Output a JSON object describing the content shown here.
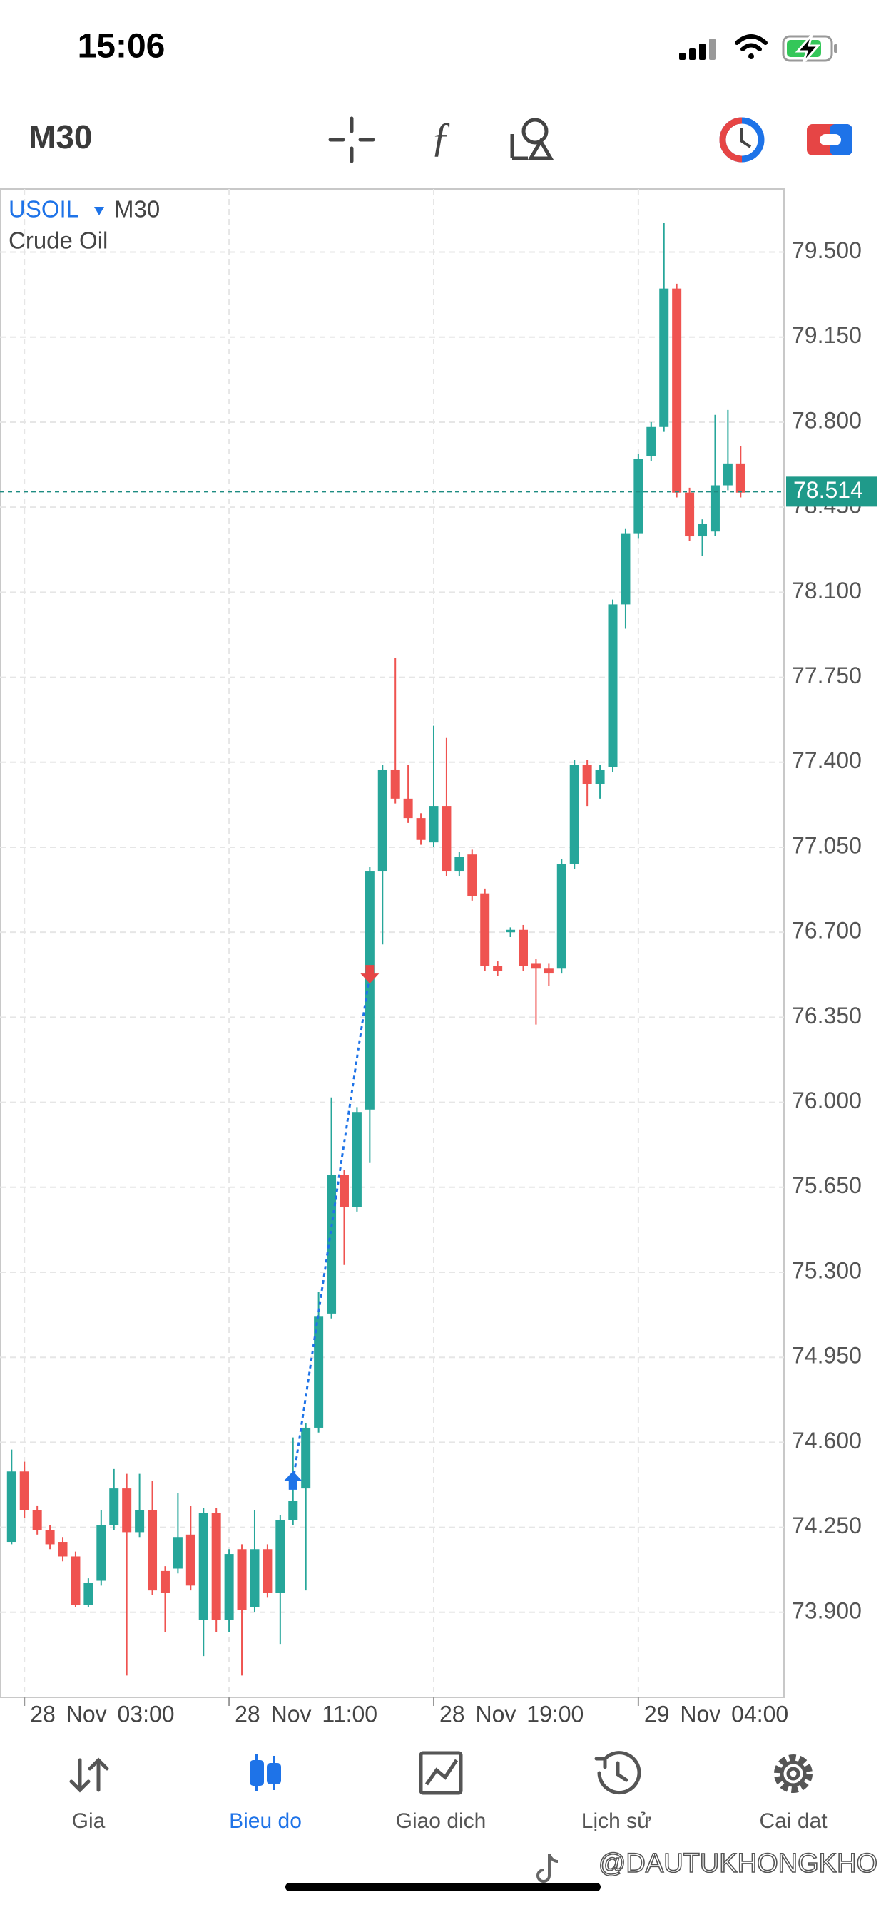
{
  "status_bar": {
    "time": "15:06"
  },
  "toolbar": {
    "timeframe": "M30"
  },
  "chart_data": {
    "type": "candlestick",
    "symbol": "USOIL",
    "timeframe": "M30",
    "description": "Crude Oil",
    "categories": [
      null,
      "28 Nov 03:00",
      null,
      null,
      null,
      null,
      null,
      null,
      null,
      null,
      null,
      null,
      null,
      null,
      null,
      null,
      null,
      "28 Nov 11:00",
      null,
      null,
      null,
      null,
      null,
      null,
      null,
      null,
      null,
      null,
      null,
      null,
      null,
      null,
      null,
      "28 Nov 19:00",
      null,
      null,
      null,
      null,
      null,
      null,
      null,
      null,
      null,
      null,
      null,
      null,
      null,
      null,
      null,
      "29 Nov 04:00",
      null,
      null,
      null,
      null,
      null,
      null,
      null,
      null
    ],
    "open": [
      74.19,
      74.48,
      74.32,
      74.24,
      74.19,
      74.13,
      73.93,
      74.03,
      74.26,
      74.41,
      74.23,
      74.32,
      74.07,
      74.08,
      74.22,
      73.87,
      74.31,
      73.87,
      74.16,
      73.92,
      74.16,
      73.98,
      74.28,
      74.41,
      74.66,
      75.13,
      75.7,
      75.57,
      75.97,
      76.95,
      77.37,
      77.25,
      77.17,
      77.07,
      77.22,
      76.95,
      77.02,
      76.86,
      76.56,
      76.7,
      76.71,
      76.57,
      76.55,
      76.55,
      76.98,
      77.39,
      77.31,
      77.38,
      78.05,
      78.34,
      78.66,
      78.78,
      79.35,
      78.51,
      78.33,
      78.35,
      78.54,
      78.63
    ],
    "high": [
      74.57,
      74.52,
      74.34,
      74.26,
      74.21,
      74.15,
      74.04,
      74.32,
      74.49,
      74.47,
      74.47,
      74.44,
      74.09,
      74.39,
      74.34,
      74.33,
      74.33,
      74.16,
      74.18,
      74.32,
      74.18,
      74.3,
      74.62,
      74.68,
      75.22,
      76.02,
      75.72,
      75.98,
      76.97,
      77.39,
      77.83,
      77.39,
      77.19,
      77.55,
      77.5,
      77.03,
      77.04,
      76.88,
      76.58,
      76.72,
      76.73,
      76.59,
      76.57,
      77.0,
      77.41,
      77.41,
      77.39,
      78.07,
      78.36,
      78.67,
      78.8,
      79.62,
      79.37,
      78.53,
      78.4,
      78.83,
      78.85,
      78.7
    ],
    "low": [
      74.18,
      74.29,
      74.22,
      74.16,
      74.11,
      73.92,
      73.92,
      74.01,
      74.24,
      73.64,
      74.21,
      73.97,
      73.82,
      74.06,
      73.99,
      73.72,
      73.82,
      73.82,
      73.64,
      73.9,
      73.96,
      73.77,
      74.26,
      73.99,
      74.64,
      75.11,
      75.33,
      75.55,
      75.75,
      76.65,
      77.23,
      77.15,
      77.06,
      77.05,
      76.93,
      76.93,
      76.83,
      76.54,
      76.52,
      76.68,
      76.54,
      76.32,
      76.48,
      76.53,
      76.96,
      77.22,
      77.25,
      77.36,
      77.95,
      78.32,
      78.64,
      78.76,
      78.49,
      78.31,
      78.25,
      78.33,
      78.52,
      78.49
    ],
    "close": [
      74.48,
      74.32,
      74.24,
      74.18,
      74.13,
      73.93,
      74.02,
      74.26,
      74.41,
      74.23,
      74.32,
      73.99,
      73.98,
      74.21,
      74.01,
      74.31,
      73.87,
      74.14,
      73.91,
      74.16,
      73.98,
      74.28,
      74.36,
      74.66,
      75.12,
      75.7,
      75.57,
      75.96,
      76.95,
      77.37,
      77.25,
      77.17,
      77.08,
      77.22,
      76.95,
      77.01,
      76.85,
      76.56,
      76.54,
      76.71,
      76.56,
      76.55,
      76.53,
      76.98,
      77.39,
      77.31,
      77.37,
      78.05,
      78.34,
      78.65,
      78.78,
      79.35,
      78.51,
      78.33,
      78.38,
      78.54,
      78.63,
      78.51
    ],
    "up_color": "#26a69a",
    "down_color": "#ef5350",
    "ylim": [
      73.55,
      79.76
    ],
    "yticks": [
      {
        "value": 73.9,
        "label": "73.900"
      },
      {
        "value": 74.25,
        "label": "74.250"
      },
      {
        "value": 74.6,
        "label": "74.600"
      },
      {
        "value": 74.95,
        "label": "74.950"
      },
      {
        "value": 75.3,
        "label": "75.300"
      },
      {
        "value": 75.65,
        "label": "75.650"
      },
      {
        "value": 76,
        "label": "76.000"
      },
      {
        "value": 76.35,
        "label": "76.350"
      },
      {
        "value": 76.7,
        "label": "76.700"
      },
      {
        "value": 77.05,
        "label": "77.050"
      },
      {
        "value": 77.4,
        "label": "77.400"
      },
      {
        "value": 77.75,
        "label": "77.750"
      },
      {
        "value": 78.1,
        "label": "78.100"
      },
      {
        "value": 78.45,
        "label": "78.450"
      },
      {
        "value": 78.8,
        "label": "78.800"
      },
      {
        "value": 79.15,
        "label": "79.150"
      },
      {
        "value": 79.5,
        "label": "79.500"
      }
    ],
    "current_price": 78.514,
    "grid": true,
    "trade": {
      "buy": 74.44,
      "sell": 76.53
    }
  },
  "tab_bar": {
    "tabs": [
      "Gia",
      "Bieu do",
      "Giao dich",
      "Lịch sử",
      "Cai dat"
    ],
    "active": 1
  },
  "watermark": "@DAUTUKHONGKHO"
}
